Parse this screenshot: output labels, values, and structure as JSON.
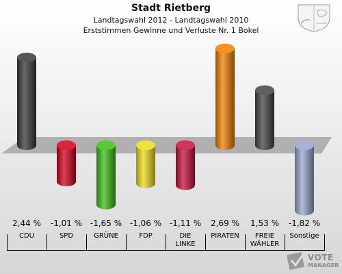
{
  "header": {
    "title": "Stadt Rietberg",
    "subtitle1": "Landtagswahl 2012 - Landtagswahl 2010",
    "subtitle2": "Erststimmen Gewinne und Verluste Nr. 1 Bokel"
  },
  "chart_data": {
    "type": "bar",
    "categories": [
      "CDU",
      "SPD",
      "GRÜNE",
      "FDP",
      "DIE\nLINKE",
      "PIRATEN",
      "FREIE\nWÄHLER",
      "Sonstige"
    ],
    "values": [
      2.44,
      -1.01,
      -1.65,
      -1.06,
      -1.11,
      2.69,
      1.53,
      -1.82
    ],
    "value_labels": [
      "2,44 %",
      "-1,01 %",
      "-1,65 %",
      "-1,06 %",
      "-1,11 %",
      "2,69 %",
      "1,53 %",
      "-1,82 %"
    ],
    "colors": [
      "#383838",
      "#d4001a",
      "#3cbf14",
      "#ecdc1c",
      "#c8103c",
      "#f08000",
      "#444444",
      "#98a6cc"
    ],
    "ylim": [
      -2,
      3
    ]
  },
  "branding": {
    "logo_line1": "VOTE",
    "logo_line2": "MANAGER"
  }
}
